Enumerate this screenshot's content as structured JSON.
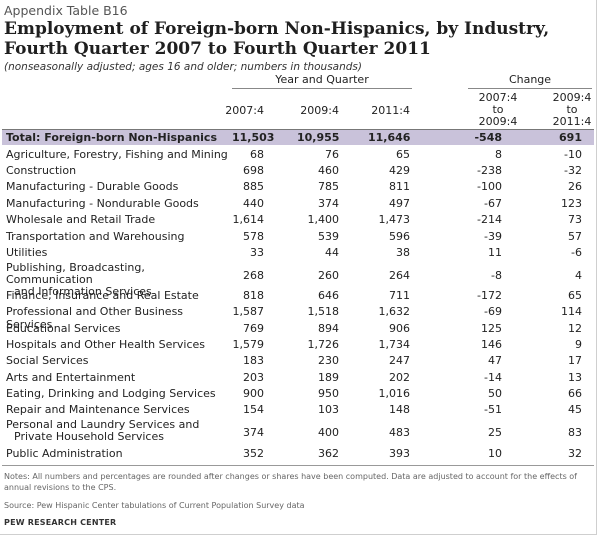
{
  "header": {
    "kicker": "Appendix Table B16",
    "title_line1": "Employment of Foreign-born Non-Hispanics, by Industry,",
    "title_line2": "Fourth Quarter 2007 to Fourth Quarter 2011",
    "subtitle": "(nonseasonally adjusted; ages 16 and older; numbers in thousands)"
  },
  "table": {
    "group_year": "Year and Quarter",
    "group_change": "Change",
    "col_2007": "2007:4",
    "col_2009": "2009:4",
    "col_2011": "2011:4",
    "chg1": {
      "a": "2007:4",
      "b": "to",
      "c": "2009:4"
    },
    "chg2": {
      "a": "2009:4",
      "b": "to",
      "c": "2011:4"
    },
    "rows": [
      {
        "label": "Total: Foreign-born Non-Hispanics",
        "v1": "11,503",
        "v2": "10,955",
        "v3": "11,646",
        "c1": "-548",
        "c2": "691"
      },
      {
        "label": "Agriculture, Forestry, Fishing and Mining",
        "v1": "68",
        "v2": "76",
        "v3": "65",
        "c1": "8",
        "c2": "-10"
      },
      {
        "label": "Construction",
        "v1": "698",
        "v2": "460",
        "v3": "429",
        "c1": "-238",
        "c2": "-32"
      },
      {
        "label": "Manufacturing - Durable Goods",
        "v1": "885",
        "v2": "785",
        "v3": "811",
        "c1": "-100",
        "c2": "26"
      },
      {
        "label": "Manufacturing - Nondurable Goods",
        "v1": "440",
        "v2": "374",
        "v3": "497",
        "c1": "-67",
        "c2": "123"
      },
      {
        "label": "Wholesale and Retail Trade",
        "v1": "1,614",
        "v2": "1,400",
        "v3": "1,473",
        "c1": "-214",
        "c2": "73"
      },
      {
        "label": "Transportation and Warehousing",
        "v1": "578",
        "v2": "539",
        "v3": "596",
        "c1": "-39",
        "c2": "57"
      },
      {
        "label": "Utilities",
        "v1": "33",
        "v2": "44",
        "v3": "38",
        "c1": "11",
        "c2": "-6"
      },
      {
        "label": "Publishing, Broadcasting, Communication",
        "label2": "and Information Services",
        "v1": "268",
        "v2": "260",
        "v3": "264",
        "c1": "-8",
        "c2": "4"
      },
      {
        "label": "Finance, Insurance and Real Estate",
        "v1": "818",
        "v2": "646",
        "v3": "711",
        "c1": "-172",
        "c2": "65"
      },
      {
        "label": "Professional and Other Business Services",
        "v1": "1,587",
        "v2": "1,518",
        "v3": "1,632",
        "c1": "-69",
        "c2": "114"
      },
      {
        "label": "Educational Services",
        "v1": "769",
        "v2": "894",
        "v3": "906",
        "c1": "125",
        "c2": "12"
      },
      {
        "label": "Hospitals and Other Health Services",
        "v1": "1,579",
        "v2": "1,726",
        "v3": "1,734",
        "c1": "146",
        "c2": "9"
      },
      {
        "label": "Social Services",
        "v1": "183",
        "v2": "230",
        "v3": "247",
        "c1": "47",
        "c2": "17"
      },
      {
        "label": "Arts and Entertainment",
        "v1": "203",
        "v2": "189",
        "v3": "202",
        "c1": "-14",
        "c2": "13"
      },
      {
        "label": "Eating, Drinking and Lodging Services",
        "v1": "900",
        "v2": "950",
        "v3": "1,016",
        "c1": "50",
        "c2": "66"
      },
      {
        "label": "Repair and Maintenance Services",
        "v1": "154",
        "v2": "103",
        "v3": "148",
        "c1": "-51",
        "c2": "45"
      },
      {
        "label": "Personal and Laundry Services and",
        "label2": "Private Household Services",
        "v1": "374",
        "v2": "400",
        "v3": "483",
        "c1": "25",
        "c2": "83"
      },
      {
        "label": "Public Administration",
        "v1": "352",
        "v2": "362",
        "v3": "393",
        "c1": "10",
        "c2": "32"
      }
    ]
  },
  "footer": {
    "notes": "Notes: All numbers and percentages are rounded after changes or shares have been computed. Data are adjusted to account for the effects of annual revisions to the CPS.",
    "source": "Source: Pew Hispanic Center tabulations of Current Population Survey data",
    "brand": "PEW RESEARCH CENTER"
  },
  "colors": {
    "total_row_bg": "#c9c2da"
  }
}
